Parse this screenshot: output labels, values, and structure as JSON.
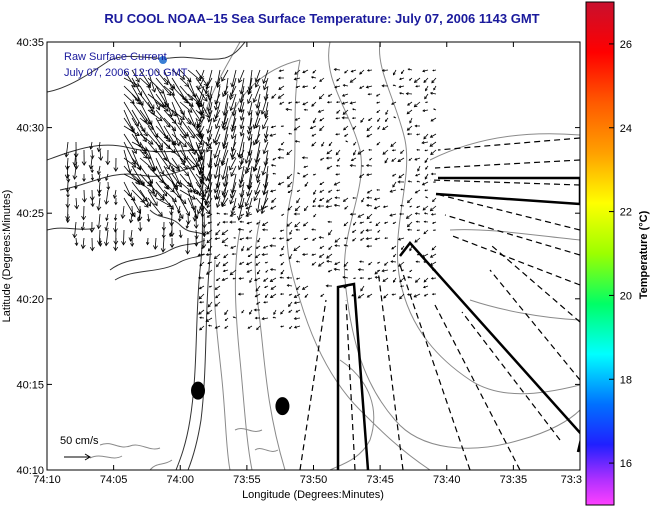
{
  "chart_data": {
    "type": "vector-field map",
    "title": "RU COOL  NOAA–15  Sea Surface Temperature:  July 07, 2006 1143 GMT",
    "xlabel": "Longitude (Degrees:Minutes)",
    "ylabel": "Latitude (Degrees:Minutes)",
    "x_ticks": [
      "74:10",
      "74:05",
      "74:00",
      "73:55",
      "73:50",
      "73:45",
      "73:40",
      "73:35",
      "73:3"
    ],
    "y_ticks": [
      "40:35",
      "40:30",
      "40:25",
      "40:20",
      "40:15",
      "40:10"
    ],
    "xlim": [
      -74.1667,
      -73.5
    ],
    "ylim": [
      40.1667,
      40.5833
    ],
    "annotation_lines": [
      "Raw Surface Current",
      "July 07, 2006 12:00 GMT"
    ],
    "scale_label": "50 cm/s",
    "colorbar": {
      "label": "Temperature (°C)",
      "ticks": [
        "26",
        "24",
        "22",
        "20",
        "18",
        "16"
      ],
      "range": [
        15,
        27
      ]
    },
    "markers": [
      {
        "lon": -73.9778,
        "lat": 40.2439
      },
      {
        "lon": -73.8722,
        "lat": 40.2289
      }
    ]
  }
}
